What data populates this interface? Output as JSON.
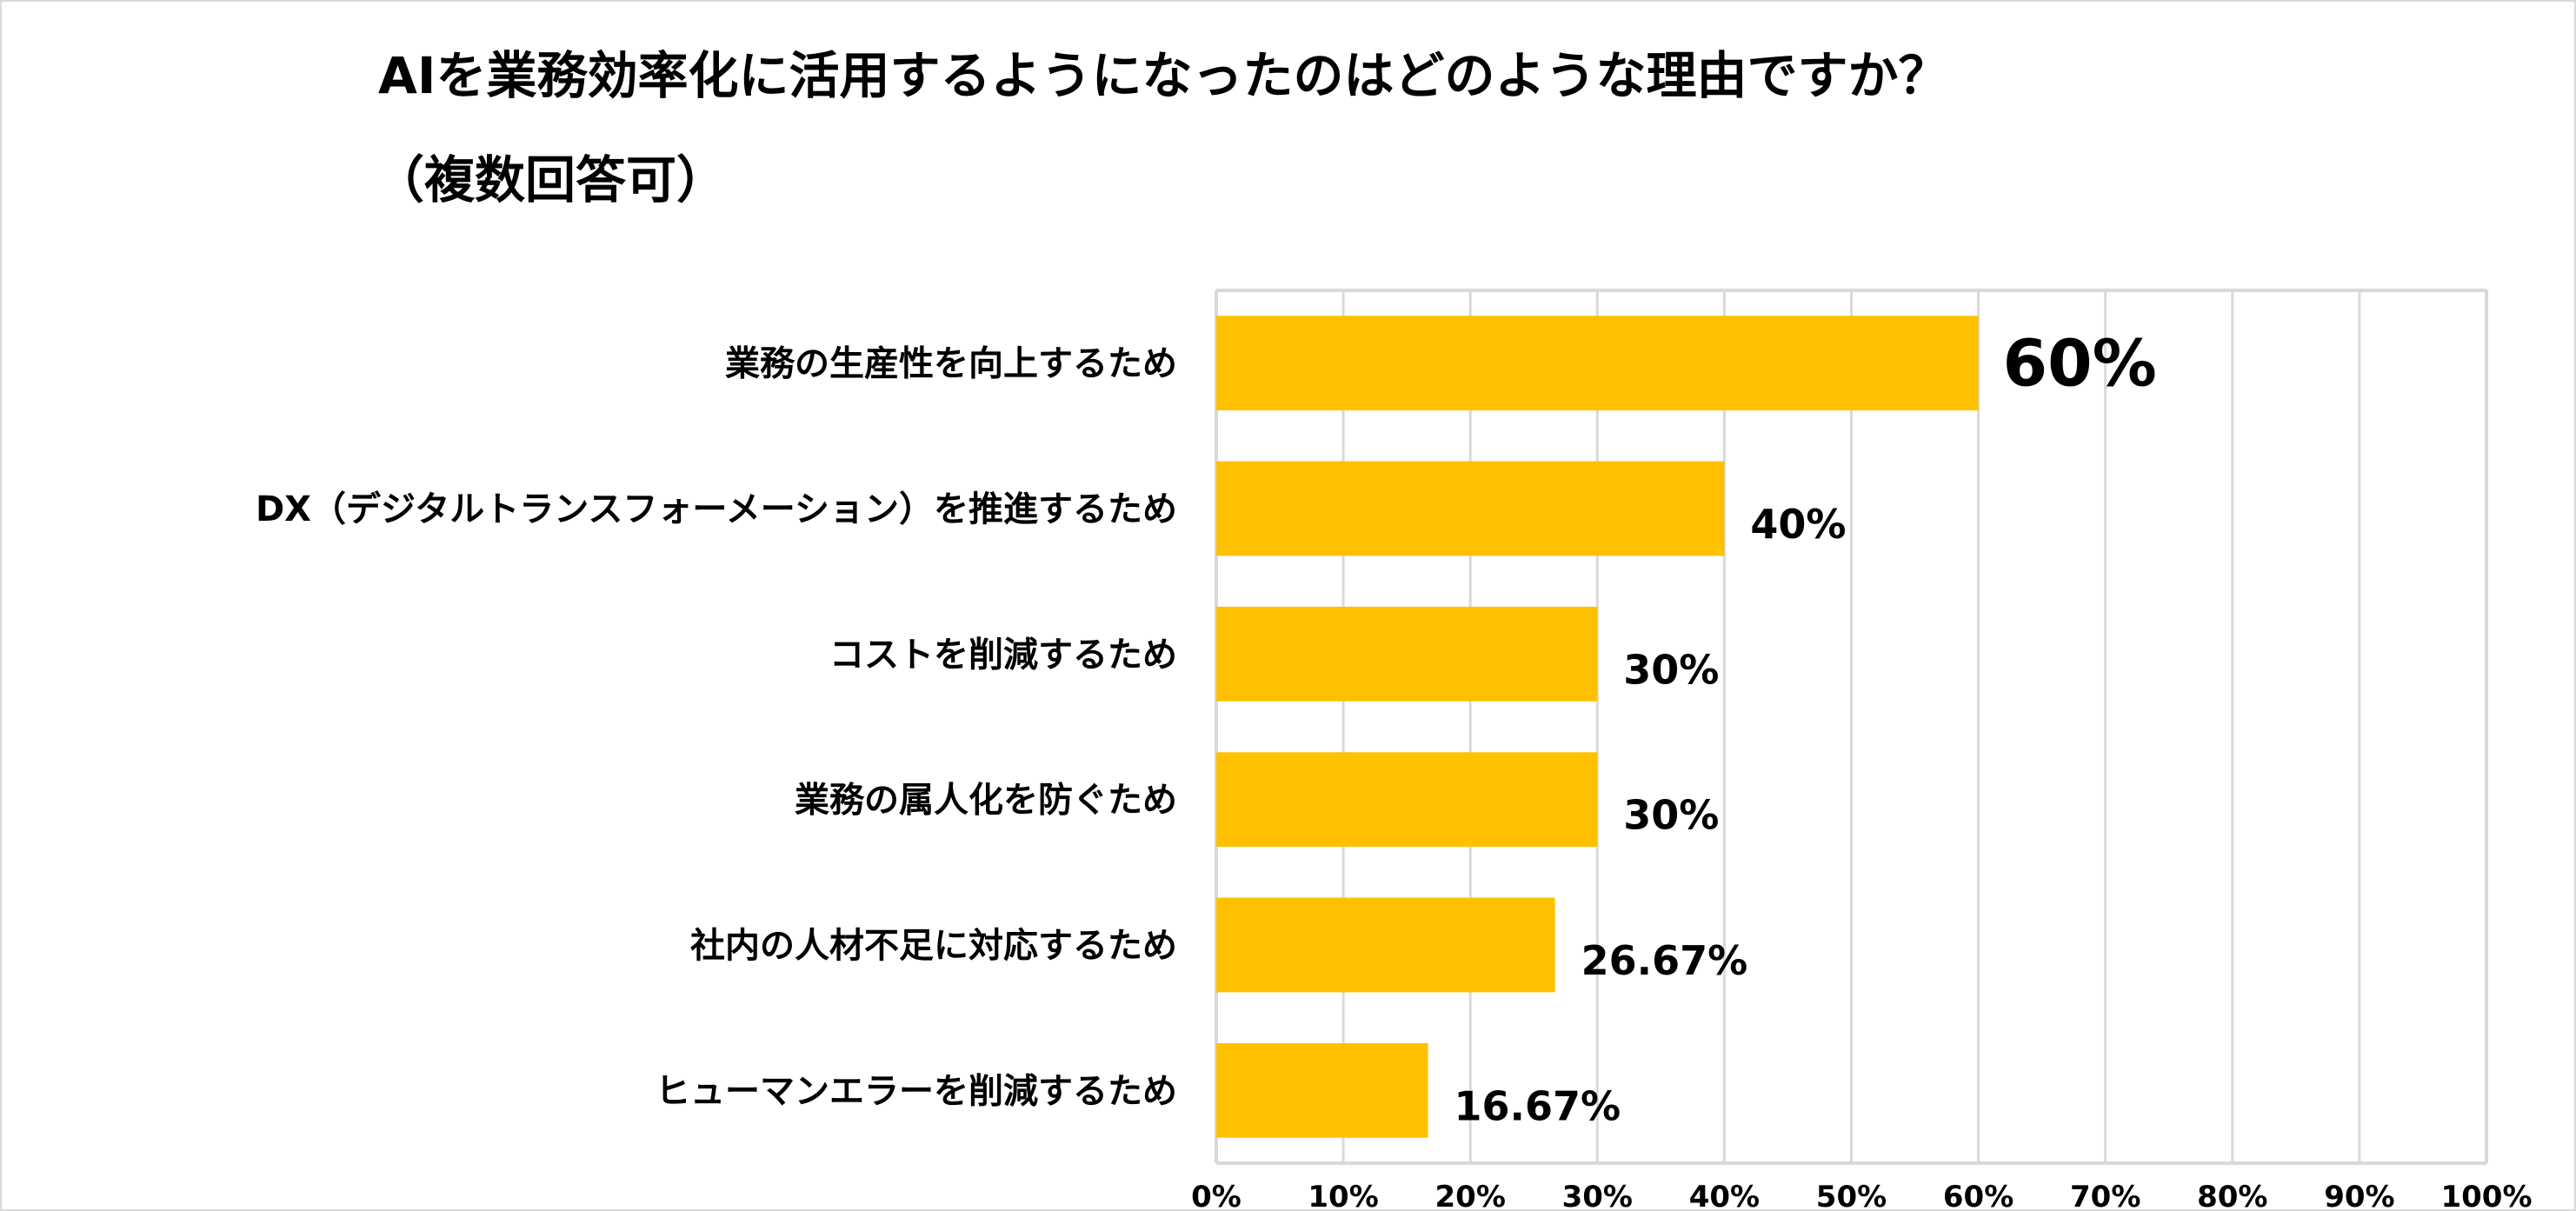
{
  "chart_data": {
    "type": "bar",
    "orientation": "horizontal",
    "title": "AIを業務効率化に活用するようになったのはどのような理由ですか？",
    "subtitle": "（複数回答可）",
    "categories": [
      "業務の生産性を向上するため",
      "DX（デジタルトランスフォーメーション）を推進するため",
      "コストを削減するため",
      "業務の属人化を防ぐため",
      "社内の人材不足に対応するため",
      "ヒューマンエラーを削減するため"
    ],
    "values": [
      60,
      40,
      30,
      30,
      26.67,
      16.67
    ],
    "data_labels": [
      "60%",
      "40%",
      "30%",
      "30%",
      "26.67%",
      "16.67%"
    ],
    "highlight_index": 0,
    "xlim": [
      0,
      100
    ],
    "x_ticks": [
      "0%",
      "10%",
      "20%",
      "30%",
      "40%",
      "50%",
      "60%",
      "70%",
      "80%",
      "90%",
      "100%"
    ],
    "grid": true,
    "xlabel": "",
    "ylabel": "",
    "colors": {
      "bar": "#FFC000",
      "highlight_label": "#F7993A",
      "grid": "#d9d9d9",
      "label": "#000000"
    }
  }
}
